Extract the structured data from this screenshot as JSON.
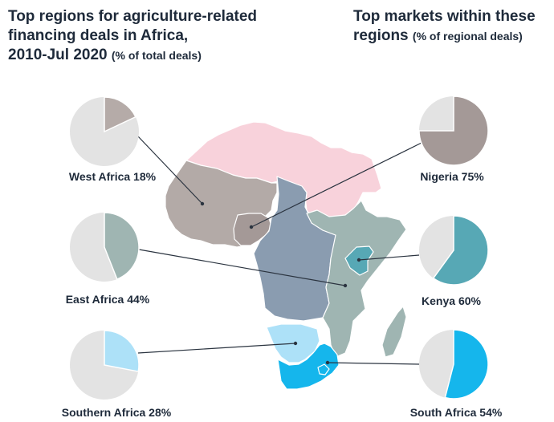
{
  "titles": {
    "left_main_1": "Top regions for agriculture-related",
    "left_main_2": "financing deals in Africa,",
    "left_main_3": "2010-Jul 2020",
    "left_sub": "(% of total deals)",
    "right_main_1": "Top markets within these",
    "right_main_2": "regions",
    "right_sub": "(% of regional deals)"
  },
  "chart_data": [
    {
      "type": "pie",
      "title": "Top regions for agriculture-related financing deals in Africa, 2010-Jul 2020 (% of total deals)",
      "slices": [
        {
          "label": "West Africa 18%",
          "value": 18,
          "color": "#b5aba8"
        },
        {
          "label": "East Africa 44%",
          "value": 44,
          "color": "#9fb5b2"
        },
        {
          "label": "Southern Africa 28%",
          "value": 28,
          "color": "#ade1f8"
        }
      ],
      "remainder_color": "#e3e3e3"
    },
    {
      "type": "pie",
      "title": "Top markets within these regions (% of regional deals)",
      "slices": [
        {
          "label": "Nigeria 75%",
          "value": 75,
          "color": "#a49997"
        },
        {
          "label": "Kenya 60%",
          "value": 60,
          "color": "#57a8b5"
        },
        {
          "label": "South Africa 54%",
          "value": 54,
          "color": "#15b6ec"
        }
      ],
      "remainder_color": "#e3e3e3"
    }
  ],
  "map": {
    "colors": {
      "north": "#f8d2db",
      "west": "#b3aaa7",
      "nigeria": "#a49997",
      "central": "#8a9cb0",
      "east": "#9fb5b2",
      "kenya": "#57a8b5",
      "southern": "#ade1f8",
      "south_africa": "#15b6ec",
      "border": "#ffffff"
    }
  }
}
